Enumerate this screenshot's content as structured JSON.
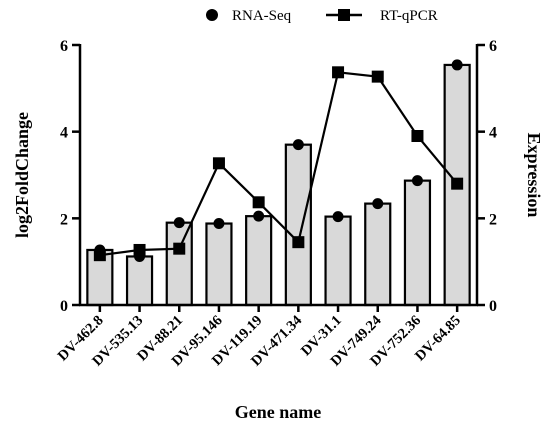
{
  "chart_data": {
    "type": "bar",
    "title": "",
    "xlabel": "Gene name",
    "ylabel": "log2FoldChange",
    "y2label": "Expression",
    "ylim": [
      0,
      6
    ],
    "y2lim": [
      0,
      6
    ],
    "yticks": [
      "0",
      "2",
      "4",
      "6"
    ],
    "y2ticks": [
      "0",
      "2",
      "4",
      "6"
    ],
    "grid": false,
    "legend_position": "top",
    "categories": [
      "DV-462.8",
      "DV-535.13",
      "DV-88.21",
      "DV-95.146",
      "DV-119.19",
      "DV-471.34",
      "DV-31.1",
      "DV-749.24",
      "DV-752.36",
      "DV-64.85"
    ],
    "bars": {
      "axis": "left",
      "color": "#d9d9d9",
      "values": [
        1.27,
        1.12,
        1.9,
        1.88,
        2.05,
        3.7,
        2.04,
        2.34,
        2.87,
        5.54
      ]
    },
    "series": [
      {
        "name": "RNA-Seq",
        "marker": "circle",
        "line": false,
        "axis": "left",
        "values": [
          1.27,
          1.12,
          1.9,
          1.88,
          2.05,
          3.7,
          2.04,
          2.34,
          2.87,
          5.54
        ]
      },
      {
        "name": "RT-qPCR",
        "marker": "square",
        "line": true,
        "axis": "right",
        "values": [
          1.15,
          1.27,
          1.3,
          3.27,
          2.37,
          1.45,
          5.37,
          5.27,
          3.9,
          2.8
        ]
      }
    ]
  }
}
